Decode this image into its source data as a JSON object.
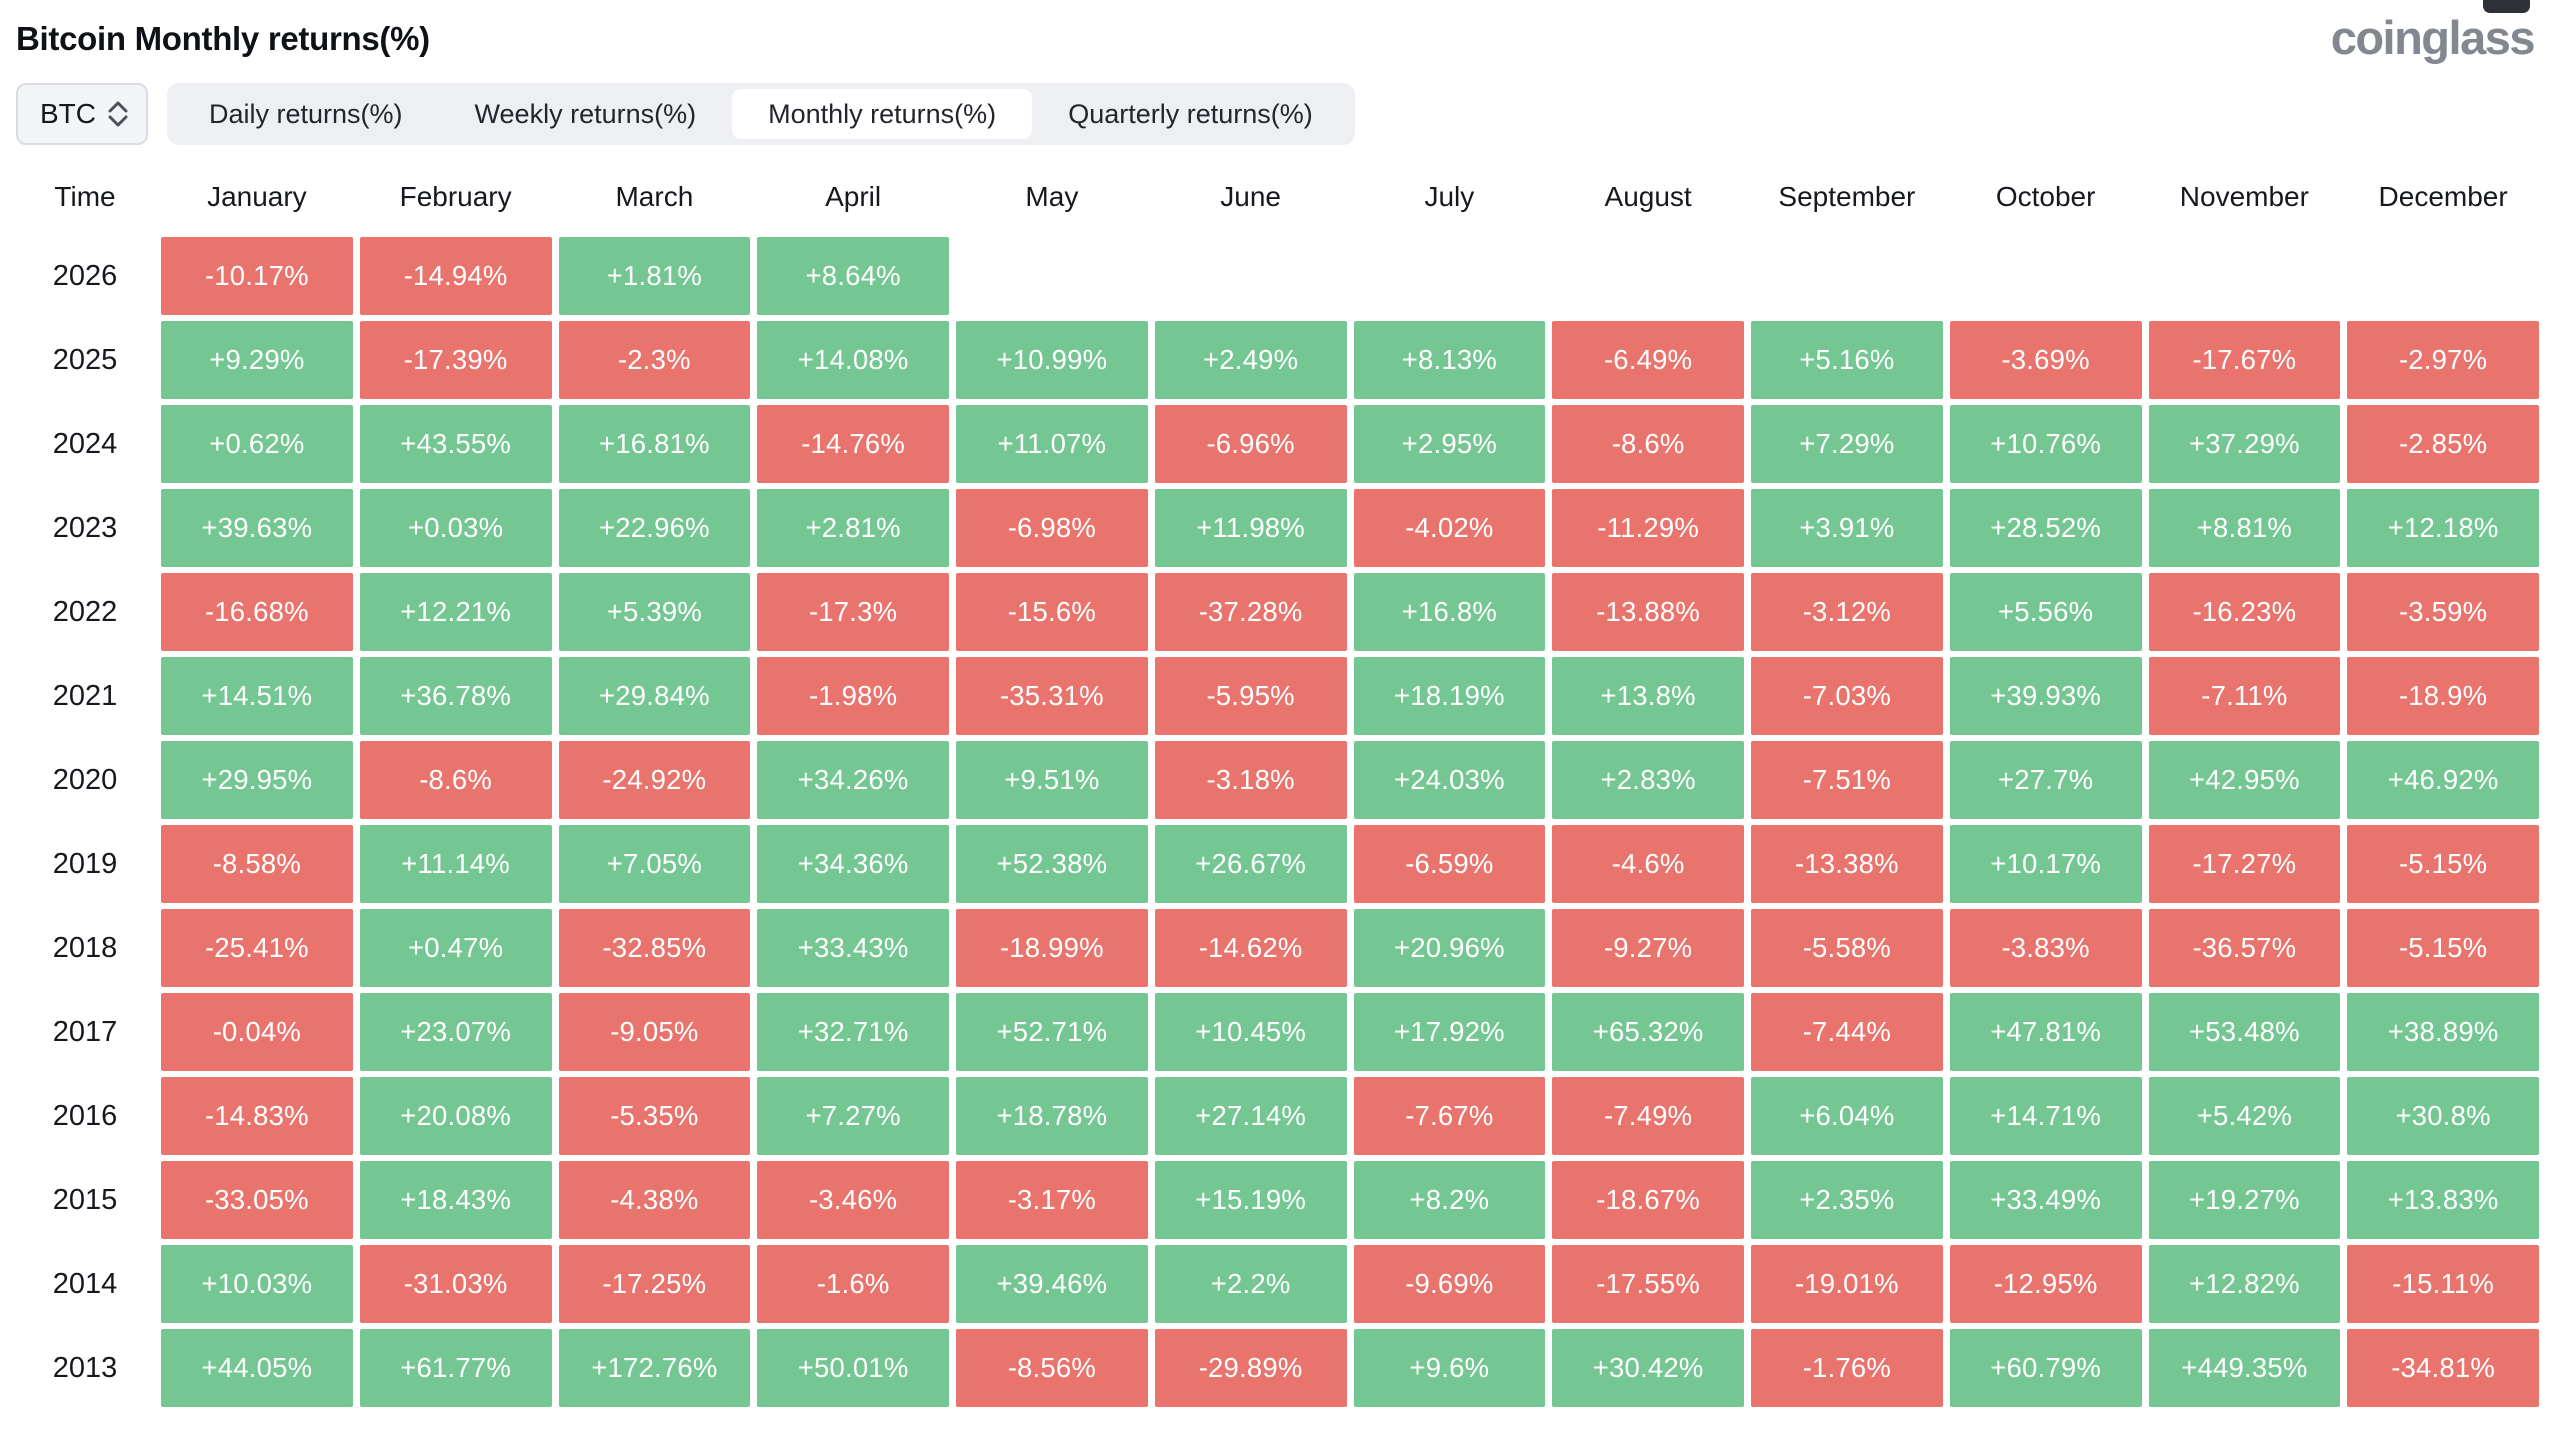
{
  "page": {
    "title": "Bitcoin Monthly returns(%)",
    "logo": "coinglass"
  },
  "controls": {
    "symbol_select": {
      "value": "BTC"
    },
    "tabs": [
      {
        "label": "Daily returns(%)",
        "active": false
      },
      {
        "label": "Weekly returns(%)",
        "active": false
      },
      {
        "label": "Monthly returns(%)",
        "active": true
      },
      {
        "label": "Quarterly returns(%)",
        "active": false
      }
    ]
  },
  "colors": {
    "positive": "#74C792",
    "negative": "#E9746D"
  },
  "chart_data": {
    "type": "heatmap",
    "title": "Bitcoin Monthly returns(%)",
    "value_unit": "percent",
    "columns": [
      "Time",
      "January",
      "February",
      "March",
      "April",
      "May",
      "June",
      "July",
      "August",
      "September",
      "October",
      "November",
      "December"
    ],
    "rows": [
      {
        "year": "2026",
        "cells": [
          "-10.17%",
          "-14.94%",
          "+1.81%",
          "+8.64%",
          null,
          null,
          null,
          null,
          null,
          null,
          null,
          null
        ]
      },
      {
        "year": "2025",
        "cells": [
          "+9.29%",
          "-17.39%",
          "-2.3%",
          "+14.08%",
          "+10.99%",
          "+2.49%",
          "+8.13%",
          "-6.49%",
          "+5.16%",
          "-3.69%",
          "-17.67%",
          "-2.97%"
        ]
      },
      {
        "year": "2024",
        "cells": [
          "+0.62%",
          "+43.55%",
          "+16.81%",
          "-14.76%",
          "+11.07%",
          "-6.96%",
          "+2.95%",
          "-8.6%",
          "+7.29%",
          "+10.76%",
          "+37.29%",
          "-2.85%"
        ]
      },
      {
        "year": "2023",
        "cells": [
          "+39.63%",
          "+0.03%",
          "+22.96%",
          "+2.81%",
          "-6.98%",
          "+11.98%",
          "-4.02%",
          "-11.29%",
          "+3.91%",
          "+28.52%",
          "+8.81%",
          "+12.18%"
        ]
      },
      {
        "year": "2022",
        "cells": [
          "-16.68%",
          "+12.21%",
          "+5.39%",
          "-17.3%",
          "-15.6%",
          "-37.28%",
          "+16.8%",
          "-13.88%",
          "-3.12%",
          "+5.56%",
          "-16.23%",
          "-3.59%"
        ]
      },
      {
        "year": "2021",
        "cells": [
          "+14.51%",
          "+36.78%",
          "+29.84%",
          "-1.98%",
          "-35.31%",
          "-5.95%",
          "+18.19%",
          "+13.8%",
          "-7.03%",
          "+39.93%",
          "-7.11%",
          "-18.9%"
        ]
      },
      {
        "year": "2020",
        "cells": [
          "+29.95%",
          "-8.6%",
          "-24.92%",
          "+34.26%",
          "+9.51%",
          "-3.18%",
          "+24.03%",
          "+2.83%",
          "-7.51%",
          "+27.7%",
          "+42.95%",
          "+46.92%"
        ]
      },
      {
        "year": "2019",
        "cells": [
          "-8.58%",
          "+11.14%",
          "+7.05%",
          "+34.36%",
          "+52.38%",
          "+26.67%",
          "-6.59%",
          "-4.6%",
          "-13.38%",
          "+10.17%",
          "-17.27%",
          "-5.15%"
        ]
      },
      {
        "year": "2018",
        "cells": [
          "-25.41%",
          "+0.47%",
          "-32.85%",
          "+33.43%",
          "-18.99%",
          "-14.62%",
          "+20.96%",
          "-9.27%",
          "-5.58%",
          "-3.83%",
          "-36.57%",
          "-5.15%"
        ]
      },
      {
        "year": "2017",
        "cells": [
          "-0.04%",
          "+23.07%",
          "-9.05%",
          "+32.71%",
          "+52.71%",
          "+10.45%",
          "+17.92%",
          "+65.32%",
          "-7.44%",
          "+47.81%",
          "+53.48%",
          "+38.89%"
        ]
      },
      {
        "year": "2016",
        "cells": [
          "-14.83%",
          "+20.08%",
          "-5.35%",
          "+7.27%",
          "+18.78%",
          "+27.14%",
          "-7.67%",
          "-7.49%",
          "+6.04%",
          "+14.71%",
          "+5.42%",
          "+30.8%"
        ]
      },
      {
        "year": "2015",
        "cells": [
          "-33.05%",
          "+18.43%",
          "-4.38%",
          "-3.46%",
          "-3.17%",
          "+15.19%",
          "+8.2%",
          "-18.67%",
          "+2.35%",
          "+33.49%",
          "+19.27%",
          "+13.83%"
        ]
      },
      {
        "year": "2014",
        "cells": [
          "+10.03%",
          "-31.03%",
          "-17.25%",
          "-1.6%",
          "+39.46%",
          "+2.2%",
          "-9.69%",
          "-17.55%",
          "-19.01%",
          "-12.95%",
          "+12.82%",
          "-15.11%"
        ]
      },
      {
        "year": "2013",
        "cells": [
          "+44.05%",
          "+61.77%",
          "+172.76%",
          "+50.01%",
          "-8.56%",
          "-29.89%",
          "+9.6%",
          "+30.42%",
          "-1.76%",
          "+60.79%",
          "+449.35%",
          "-34.81%"
        ]
      }
    ]
  }
}
